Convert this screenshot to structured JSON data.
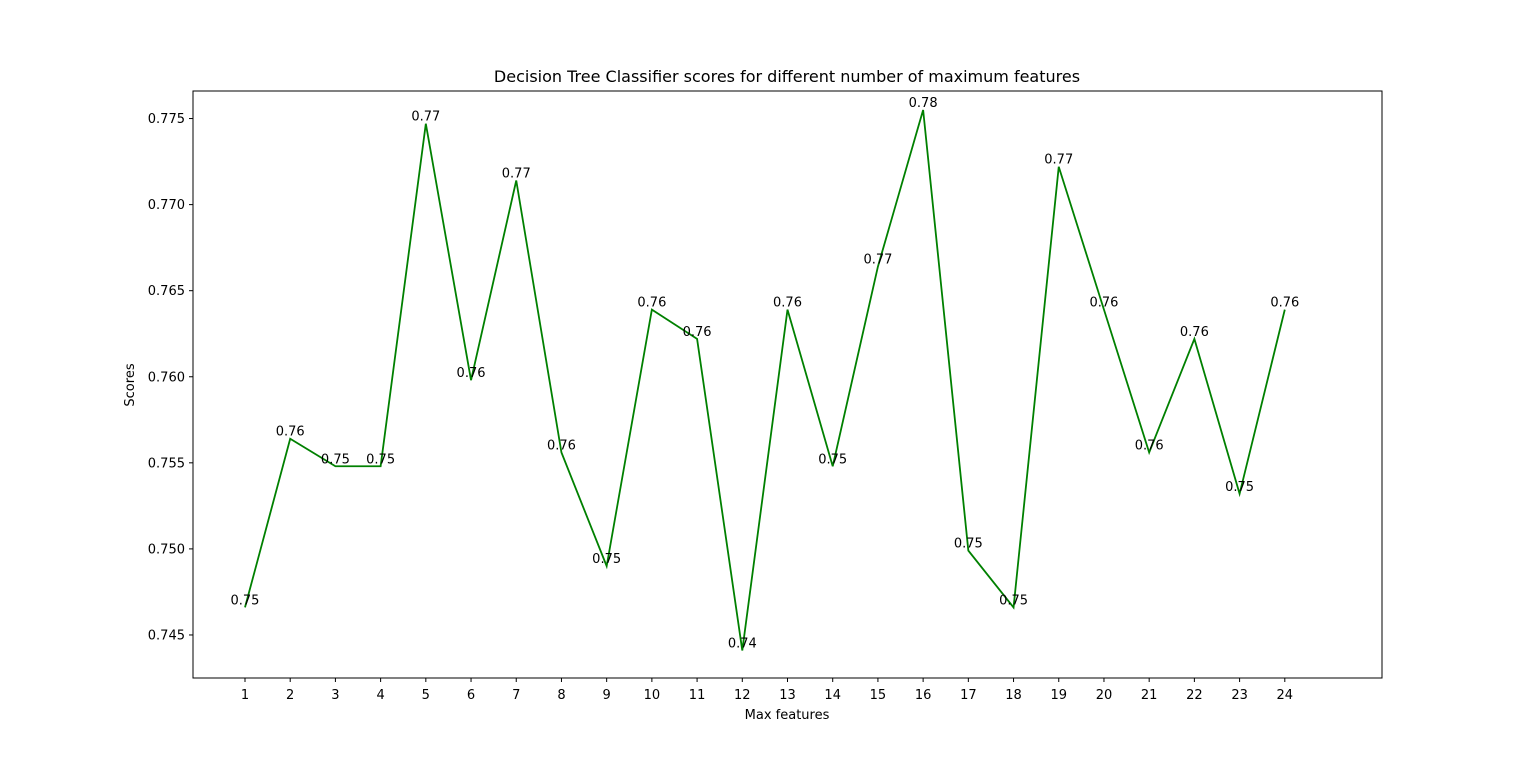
{
  "chart_data": {
    "type": "line",
    "title": "Decision Tree Classifier scores for different number of maximum features",
    "xlabel": "Max features",
    "ylabel": "Scores",
    "x": [
      1,
      2,
      3,
      4,
      5,
      6,
      7,
      8,
      9,
      10,
      11,
      12,
      13,
      14,
      15,
      16,
      17,
      18,
      19,
      20,
      21,
      22,
      23,
      24
    ],
    "series": [
      {
        "values": [
          0.7466,
          0.7564,
          0.7548,
          0.7548,
          0.7747,
          0.7598,
          0.7714,
          0.7556,
          0.749,
          0.7639,
          0.7622,
          0.7441,
          0.7639,
          0.7548,
          0.7664,
          0.7755,
          0.7499,
          0.7466,
          0.7722,
          0.7639,
          0.7556,
          0.7622,
          0.7532,
          0.7639
        ],
        "labels": [
          "0.75",
          "0.76",
          "0.75",
          "0.75",
          "0.77",
          "0.76",
          "0.77",
          "0.76",
          "0.75",
          "0.76",
          "0.76",
          "0.74",
          "0.76",
          "0.75",
          "0.77",
          "0.78",
          "0.75",
          "0.75",
          "0.77",
          "0.76",
          "0.76",
          "0.76",
          "0.75",
          "0.76"
        ],
        "color": "#008000"
      }
    ],
    "xticks": [
      "1",
      "2",
      "3",
      "4",
      "5",
      "6",
      "7",
      "8",
      "9",
      "10",
      "11",
      "12",
      "13",
      "14",
      "15",
      "16",
      "17",
      "18",
      "19",
      "20",
      "21",
      "22",
      "23",
      "24"
    ],
    "yticks": [
      "0.745",
      "0.750",
      "0.755",
      "0.760",
      "0.765",
      "0.770",
      "0.775"
    ],
    "ytick_values": [
      0.745,
      0.75,
      0.755,
      0.76,
      0.765,
      0.77,
      0.775
    ],
    "xlim": [
      -0.15,
      26.15
    ],
    "ylim": [
      0.7425,
      0.7766
    ],
    "grid": false,
    "legend": "none"
  }
}
